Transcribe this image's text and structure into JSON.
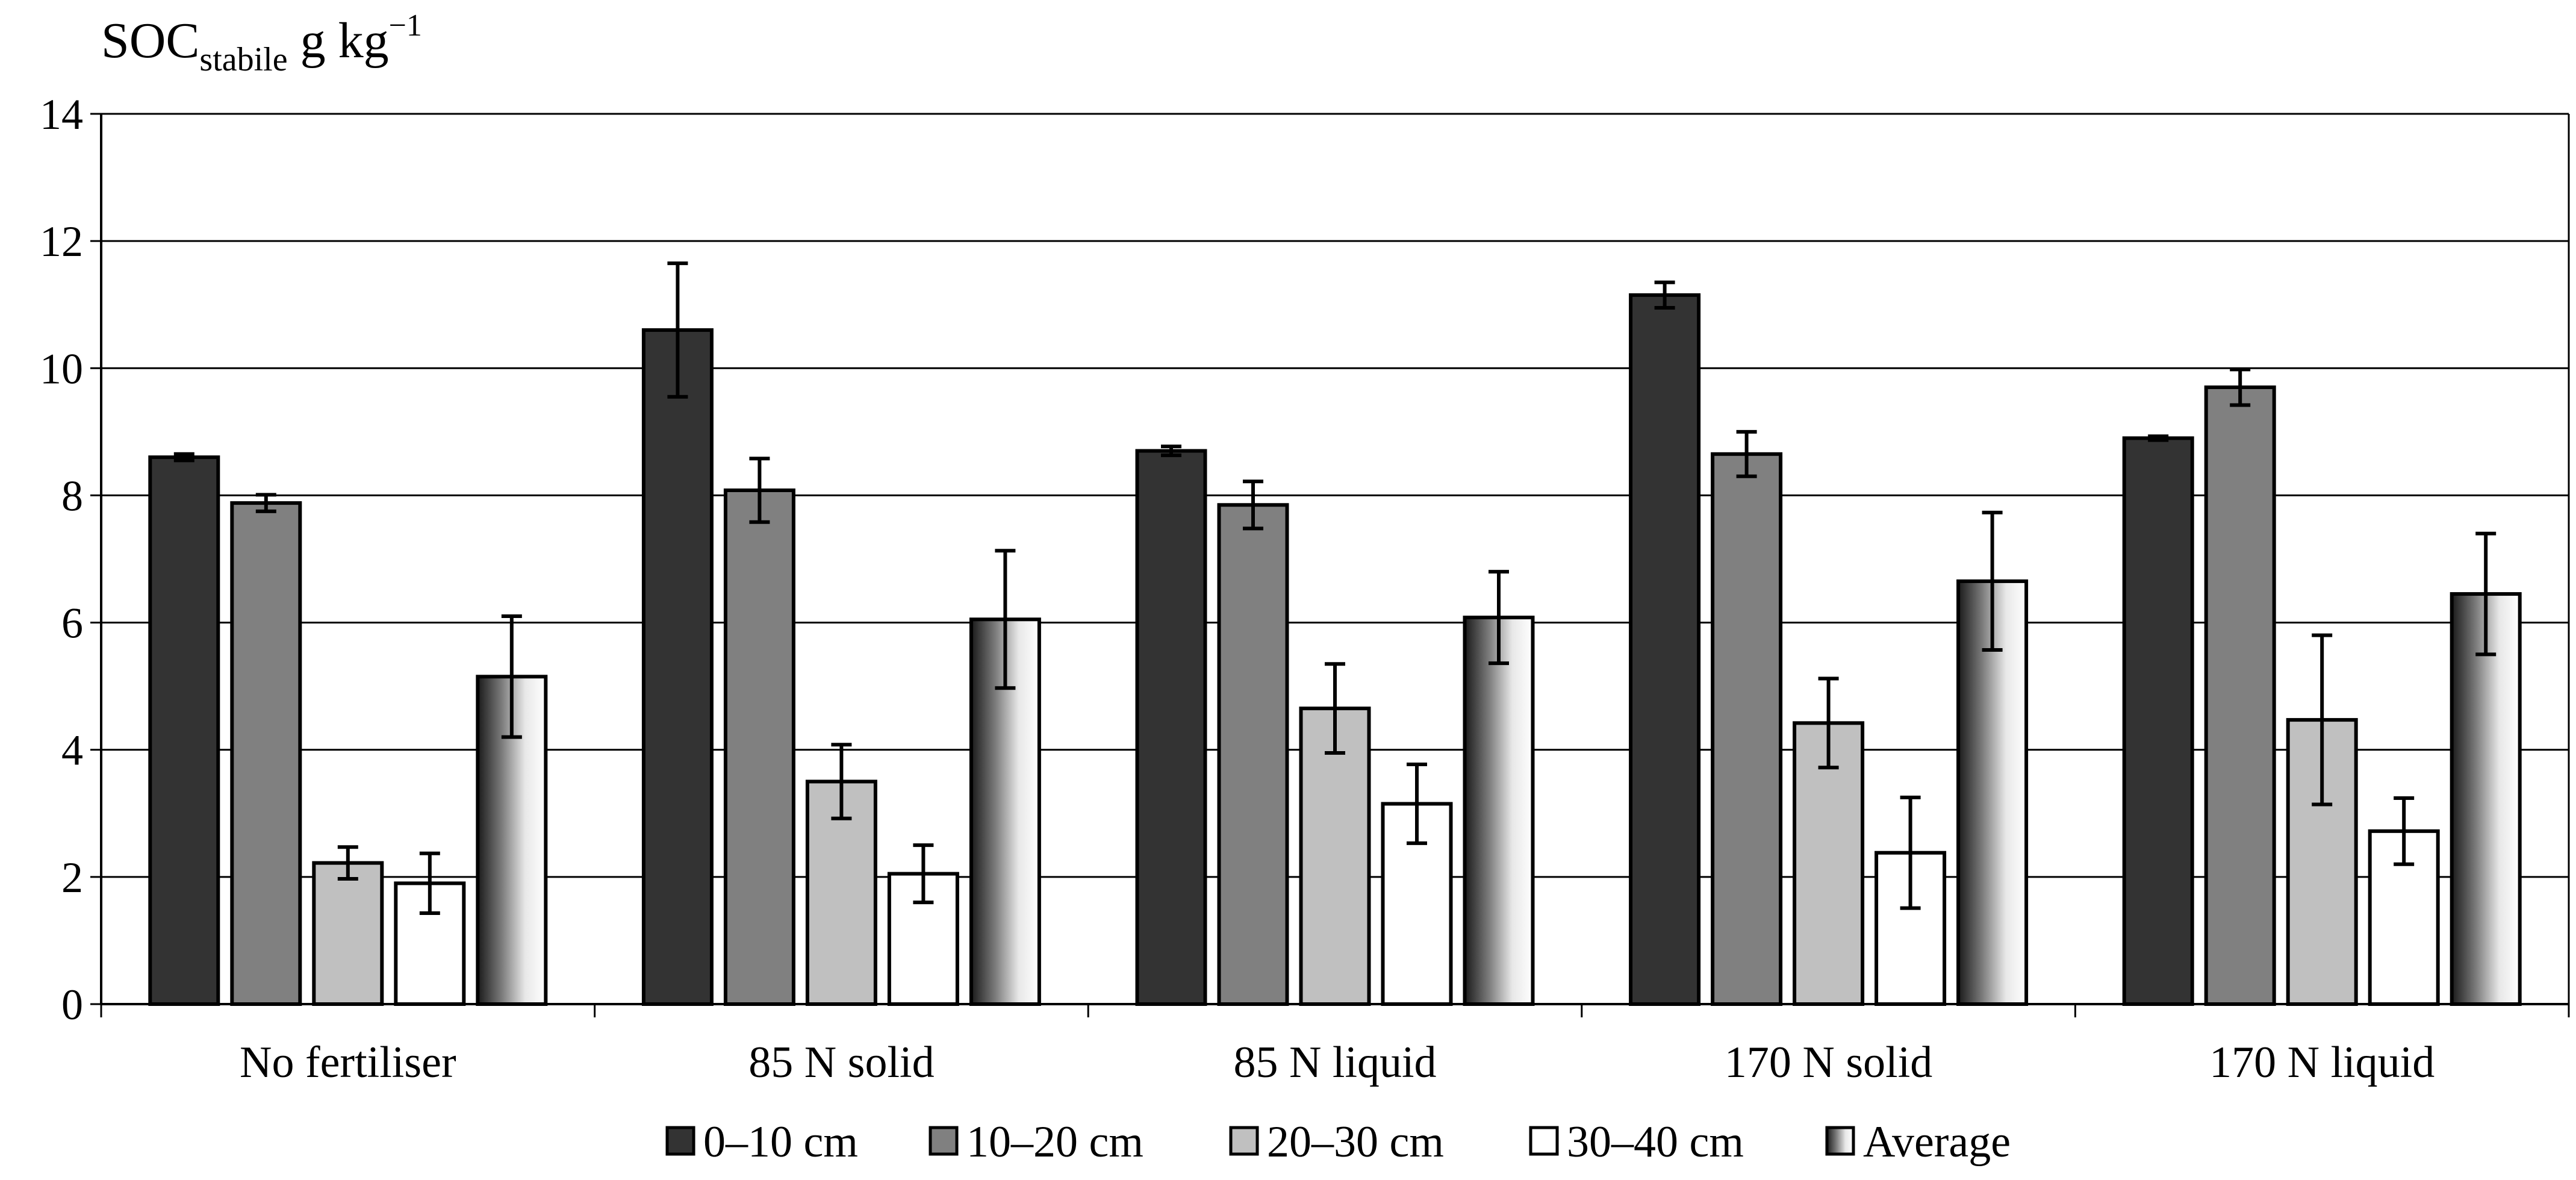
{
  "chart_data": {
    "type": "bar",
    "title": {
      "main": "SOC",
      "subscript": "stabile",
      "unit": " g kg",
      "superscript": "−1"
    },
    "xlabel": "",
    "ylabel": "",
    "ylim": [
      0,
      14
    ],
    "yticks": [
      "0",
      "2",
      "4",
      "6",
      "8",
      "10",
      "12",
      "14"
    ],
    "grid": true,
    "legend_position": "bottom",
    "categories": [
      "No fertiliser",
      "85 N solid",
      "85 N liquid",
      "170 N solid",
      "170 N liquid"
    ],
    "series": [
      {
        "name": "0–10 cm",
        "color": "#333333",
        "values": [
          8.6,
          10.6,
          8.7,
          11.15,
          8.9
        ],
        "errors": [
          0.05,
          1.05,
          0.07,
          0.2,
          0.03
        ]
      },
      {
        "name": "10–20 cm",
        "color": "#808080",
        "values": [
          7.88,
          8.08,
          7.85,
          8.65,
          9.7
        ],
        "errors": [
          0.13,
          0.5,
          0.37,
          0.35,
          0.28
        ]
      },
      {
        "name": "20–30 cm",
        "color": "#c0c0c0",
        "values": [
          2.22,
          3.5,
          4.65,
          4.42,
          4.47
        ],
        "errors": [
          0.25,
          0.58,
          0.7,
          0.7,
          1.33
        ]
      },
      {
        "name": "30–40 cm",
        "color": "#ffffff",
        "values": [
          1.9,
          2.05,
          3.15,
          2.38,
          2.72
        ],
        "errors": [
          0.47,
          0.45,
          0.62,
          0.87,
          0.52
        ]
      },
      {
        "name": "Average",
        "color": "gradient",
        "values": [
          5.15,
          6.05,
          6.08,
          6.65,
          6.45
        ],
        "errors": [
          0.95,
          1.08,
          0.72,
          1.08,
          0.95
        ]
      }
    ]
  }
}
